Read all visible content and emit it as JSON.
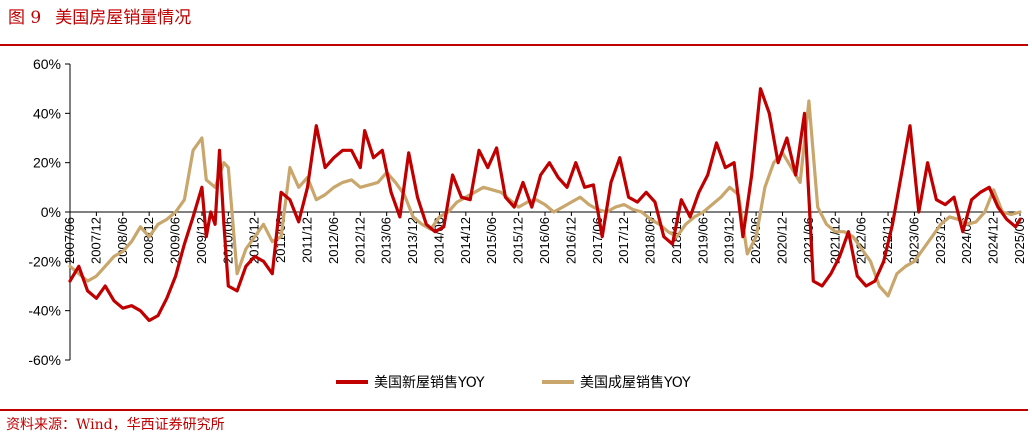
{
  "figure": {
    "label": "图 9",
    "title": "美国房屋销量情况",
    "source": "资料来源：Wind，华西证券研究所"
  },
  "colors": {
    "accent": "#c00000",
    "series_new": "#c00000",
    "series_existing": "#c9a66b",
    "axis": "#000000"
  },
  "chart_data": {
    "type": "line",
    "title": "",
    "xlabel": "",
    "ylabel": "",
    "ylim": [
      -60,
      60
    ],
    "y_ticks": [
      60,
      40,
      20,
      0,
      -20,
      -40,
      -60
    ],
    "y_tick_labels": [
      "60%",
      "40%",
      "20%",
      "0%",
      "-20%",
      "-40%",
      "-60%"
    ],
    "x_range": [
      "2007-06",
      "2025-06"
    ],
    "x_tick_labels": [
      "2007/06",
      "2007/12",
      "2008/06",
      "2008/12",
      "2009/06",
      "2009/12",
      "2010/06",
      "2010/12",
      "2011/06",
      "2011/12",
      "2012/06",
      "2012/12",
      "2013/06",
      "2013/12",
      "2014/06",
      "2014/12",
      "2015/06",
      "2015/12",
      "2016/06",
      "2016/12",
      "2017/06",
      "2017/12",
      "2018/06",
      "2018/12",
      "2019/06",
      "2019/12",
      "2020/06",
      "2020/12",
      "2021/06",
      "2021/12",
      "2022/06",
      "2022/12",
      "2023/06",
      "2023/12",
      "2024/06",
      "2024/12",
      "2025/06"
    ],
    "grid": false,
    "legend_position": "bottom",
    "series": [
      {
        "name": "美国新屋销售YOY",
        "color": "#c00000",
        "points": [
          [
            "2007-06",
            -28
          ],
          [
            "2007-08",
            -22
          ],
          [
            "2007-10",
            -32
          ],
          [
            "2007-12",
            -35
          ],
          [
            "2008-02",
            -30
          ],
          [
            "2008-04",
            -36
          ],
          [
            "2008-06",
            -39
          ],
          [
            "2008-08",
            -38
          ],
          [
            "2008-10",
            -40
          ],
          [
            "2008-12",
            -44
          ],
          [
            "2009-02",
            -42
          ],
          [
            "2009-04",
            -35
          ],
          [
            "2009-06",
            -26
          ],
          [
            "2009-08",
            -13
          ],
          [
            "2009-10",
            -2
          ],
          [
            "2009-12",
            10
          ],
          [
            "2010-01",
            -10
          ],
          [
            "2010-02",
            0
          ],
          [
            "2010-03",
            -5
          ],
          [
            "2010-04",
            25
          ],
          [
            "2010-05",
            -5
          ],
          [
            "2010-06",
            -30
          ],
          [
            "2010-08",
            -32
          ],
          [
            "2010-10",
            -22
          ],
          [
            "2010-12",
            -18
          ],
          [
            "2011-02",
            -20
          ],
          [
            "2011-04",
            -25
          ],
          [
            "2011-06",
            8
          ],
          [
            "2011-08",
            5
          ],
          [
            "2011-10",
            -4
          ],
          [
            "2011-12",
            10
          ],
          [
            "2012-02",
            35
          ],
          [
            "2012-04",
            18
          ],
          [
            "2012-06",
            22
          ],
          [
            "2012-08",
            25
          ],
          [
            "2012-10",
            25
          ],
          [
            "2012-12",
            18
          ],
          [
            "2013-01",
            33
          ],
          [
            "2013-03",
            22
          ],
          [
            "2013-05",
            25
          ],
          [
            "2013-07",
            8
          ],
          [
            "2013-09",
            -2
          ],
          [
            "2013-11",
            24
          ],
          [
            "2014-01",
            6
          ],
          [
            "2014-03",
            -5
          ],
          [
            "2014-05",
            -8
          ],
          [
            "2014-07",
            -6
          ],
          [
            "2014-09",
            15
          ],
          [
            "2014-11",
            6
          ],
          [
            "2015-01",
            5
          ],
          [
            "2015-03",
            25
          ],
          [
            "2015-05",
            18
          ],
          [
            "2015-07",
            26
          ],
          [
            "2015-09",
            6
          ],
          [
            "2015-11",
            2
          ],
          [
            "2016-01",
            12
          ],
          [
            "2016-03",
            2
          ],
          [
            "2016-05",
            15
          ],
          [
            "2016-07",
            20
          ],
          [
            "2016-09",
            14
          ],
          [
            "2016-11",
            10
          ],
          [
            "2017-01",
            20
          ],
          [
            "2017-03",
            10
          ],
          [
            "2017-05",
            11
          ],
          [
            "2017-07",
            -10
          ],
          [
            "2017-09",
            12
          ],
          [
            "2017-11",
            22
          ],
          [
            "2018-01",
            6
          ],
          [
            "2018-03",
            4
          ],
          [
            "2018-05",
            8
          ],
          [
            "2018-07",
            4
          ],
          [
            "2018-09",
            -10
          ],
          [
            "2018-11",
            -13
          ],
          [
            "2019-01",
            5
          ],
          [
            "2019-03",
            -2
          ],
          [
            "2019-05",
            8
          ],
          [
            "2019-07",
            15
          ],
          [
            "2019-09",
            28
          ],
          [
            "2019-11",
            18
          ],
          [
            "2020-01",
            20
          ],
          [
            "2020-03",
            -10
          ],
          [
            "2020-05",
            15
          ],
          [
            "2020-07",
            50
          ],
          [
            "2020-09",
            40
          ],
          [
            "2020-11",
            20
          ],
          [
            "2021-01",
            30
          ],
          [
            "2021-03",
            15
          ],
          [
            "2021-05",
            40
          ],
          [
            "2021-07",
            -28
          ],
          [
            "2021-09",
            -30
          ],
          [
            "2021-11",
            -25
          ],
          [
            "2022-01",
            -18
          ],
          [
            "2022-03",
            -8
          ],
          [
            "2022-05",
            -26
          ],
          [
            "2022-07",
            -30
          ],
          [
            "2022-09",
            -28
          ],
          [
            "2022-11",
            -20
          ],
          [
            "2023-01",
            -5
          ],
          [
            "2023-03",
            15
          ],
          [
            "2023-05",
            35
          ],
          [
            "2023-07",
            0
          ],
          [
            "2023-09",
            20
          ],
          [
            "2023-11",
            5
          ],
          [
            "2024-01",
            3
          ],
          [
            "2024-03",
            6
          ],
          [
            "2024-05",
            -8
          ],
          [
            "2024-07",
            5
          ],
          [
            "2024-09",
            8
          ],
          [
            "2024-11",
            10
          ],
          [
            "2025-01",
            2
          ],
          [
            "2025-03",
            -3
          ],
          [
            "2025-05",
            -6
          ],
          [
            "2025-06",
            -3
          ]
        ]
      },
      {
        "name": "美国成屋销售YOY",
        "color": "#c9a66b",
        "points": [
          [
            "2007-06",
            -22
          ],
          [
            "2007-08",
            -25
          ],
          [
            "2007-10",
            -28
          ],
          [
            "2007-12",
            -26
          ],
          [
            "2008-02",
            -22
          ],
          [
            "2008-04",
            -18
          ],
          [
            "2008-06",
            -16
          ],
          [
            "2008-08",
            -12
          ],
          [
            "2008-10",
            -6
          ],
          [
            "2008-12",
            -10
          ],
          [
            "2009-02",
            -5
          ],
          [
            "2009-04",
            -3
          ],
          [
            "2009-06",
            0
          ],
          [
            "2009-08",
            5
          ],
          [
            "2009-10",
            25
          ],
          [
            "2009-12",
            30
          ],
          [
            "2010-01",
            13
          ],
          [
            "2010-03",
            10
          ],
          [
            "2010-05",
            20
          ],
          [
            "2010-06",
            18
          ],
          [
            "2010-08",
            -25
          ],
          [
            "2010-10",
            -15
          ],
          [
            "2010-12",
            -10
          ],
          [
            "2011-02",
            -5
          ],
          [
            "2011-04",
            -12
          ],
          [
            "2011-06",
            -10
          ],
          [
            "2011-08",
            18
          ],
          [
            "2011-10",
            10
          ],
          [
            "2011-12",
            14
          ],
          [
            "2012-02",
            5
          ],
          [
            "2012-04",
            7
          ],
          [
            "2012-06",
            10
          ],
          [
            "2012-08",
            12
          ],
          [
            "2012-10",
            13
          ],
          [
            "2012-12",
            10
          ],
          [
            "2013-02",
            11
          ],
          [
            "2013-04",
            12
          ],
          [
            "2013-06",
            16
          ],
          [
            "2013-08",
            12
          ],
          [
            "2013-10",
            7
          ],
          [
            "2013-12",
            -2
          ],
          [
            "2014-02",
            -5
          ],
          [
            "2014-04",
            -7
          ],
          [
            "2014-06",
            -2
          ],
          [
            "2014-08",
            0
          ],
          [
            "2014-10",
            4
          ],
          [
            "2014-12",
            6
          ],
          [
            "2015-02",
            8
          ],
          [
            "2015-04",
            10
          ],
          [
            "2015-06",
            9
          ],
          [
            "2015-08",
            8
          ],
          [
            "2015-10",
            5
          ],
          [
            "2015-12",
            2
          ],
          [
            "2016-02",
            4
          ],
          [
            "2016-04",
            5
          ],
          [
            "2016-06",
            3
          ],
          [
            "2016-08",
            0
          ],
          [
            "2016-10",
            2
          ],
          [
            "2016-12",
            4
          ],
          [
            "2017-02",
            6
          ],
          [
            "2017-04",
            3
          ],
          [
            "2017-06",
            1
          ],
          [
            "2017-08",
            0
          ],
          [
            "2017-10",
            2
          ],
          [
            "2017-12",
            3
          ],
          [
            "2018-02",
            1
          ],
          [
            "2018-04",
            0
          ],
          [
            "2018-06",
            -3
          ],
          [
            "2018-08",
            -5
          ],
          [
            "2018-10",
            -8
          ],
          [
            "2018-12",
            -10
          ],
          [
            "2019-02",
            -5
          ],
          [
            "2019-04",
            -2
          ],
          [
            "2019-06",
            0
          ],
          [
            "2019-08",
            3
          ],
          [
            "2019-10",
            6
          ],
          [
            "2019-12",
            10
          ],
          [
            "2020-02",
            7
          ],
          [
            "2020-04",
            -17
          ],
          [
            "2020-06",
            -10
          ],
          [
            "2020-08",
            10
          ],
          [
            "2020-10",
            20
          ],
          [
            "2020-12",
            24
          ],
          [
            "2021-02",
            18
          ],
          [
            "2021-04",
            12
          ],
          [
            "2021-06",
            45
          ],
          [
            "2021-08",
            2
          ],
          [
            "2021-10",
            -5
          ],
          [
            "2021-12",
            -8
          ],
          [
            "2022-02",
            -8
          ],
          [
            "2022-04",
            -10
          ],
          [
            "2022-06",
            -15
          ],
          [
            "2022-08",
            -20
          ],
          [
            "2022-10",
            -30
          ],
          [
            "2022-12",
            -34
          ],
          [
            "2023-02",
            -25
          ],
          [
            "2023-04",
            -22
          ],
          [
            "2023-06",
            -20
          ],
          [
            "2023-08",
            -15
          ],
          [
            "2023-10",
            -10
          ],
          [
            "2023-12",
            -5
          ],
          [
            "2024-02",
            -2
          ],
          [
            "2024-04",
            -3
          ],
          [
            "2024-06",
            -5
          ],
          [
            "2024-08",
            -4
          ],
          [
            "2024-10",
            0
          ],
          [
            "2024-12",
            9
          ],
          [
            "2025-02",
            0
          ],
          [
            "2025-04",
            -1
          ],
          [
            "2025-06",
            0
          ]
        ]
      }
    ]
  }
}
